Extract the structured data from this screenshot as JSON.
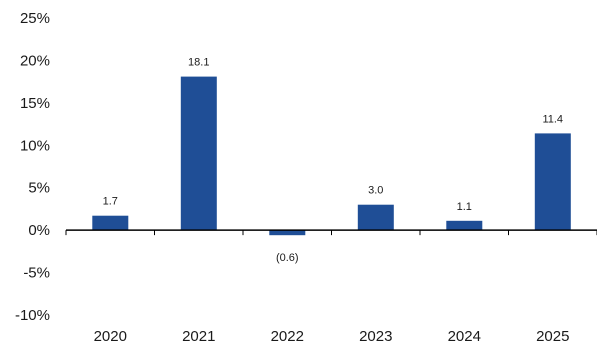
{
  "chart_data": {
    "type": "bar",
    "categories": [
      "2020",
      "2021",
      "2022",
      "2023",
      "2024",
      "2025"
    ],
    "values": [
      1.7,
      18.1,
      -0.6,
      3.0,
      1.1,
      11.4
    ],
    "data_labels": [
      "1.7",
      "18.1",
      "(0.6)",
      "3.0",
      "1.1",
      "11.4"
    ],
    "y_ticks": [
      -10,
      -5,
      0,
      5,
      10,
      15,
      20,
      25
    ],
    "y_tick_labels": [
      "-10%",
      "-5%",
      "0%",
      "5%",
      "10%",
      "15%",
      "20%",
      "25%"
    ],
    "ylim": [
      -10,
      25
    ],
    "grid": false,
    "bar_color": "#1f4e96",
    "axis_color": "#000000",
    "title": "",
    "xlabel": "",
    "ylabel": ""
  }
}
